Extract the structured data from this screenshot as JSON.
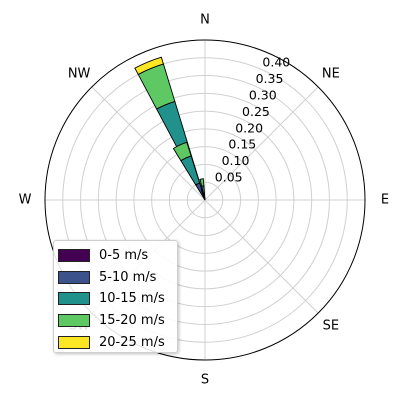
{
  "chart_data": {
    "type": "windrose",
    "directions": [
      "N",
      "NE",
      "E",
      "SE",
      "S",
      "SW",
      "W",
      "NW"
    ],
    "radial_ticks": [
      "0.05",
      "0.10",
      "0.15",
      "0.20",
      "0.25",
      "0.30",
      "0.35",
      "0.40"
    ],
    "rmax": 0.45,
    "grid": true,
    "legend_position": "lower-left",
    "bins": [
      {
        "name": "0-5 m/s",
        "color": "#440154"
      },
      {
        "name": "5-10 m/s",
        "color": "#3b528b"
      },
      {
        "name": "10-15 m/s",
        "color": "#21918c"
      },
      {
        "name": "15-20 m/s",
        "color": "#5ec962"
      },
      {
        "name": "20-25 m/s",
        "color": "#fde725"
      }
    ],
    "sectors": [
      {
        "direction_deg": 337.5,
        "width_deg": 11,
        "cumulative": [
          0.005,
          0.06,
          0.29,
          0.4,
          0.42
        ]
      },
      {
        "direction_deg": 335.5,
        "width_deg": 14,
        "cumulative": [
          0.005,
          0.05,
          0.13,
          0.17,
          0.17
        ]
      },
      {
        "direction_deg": 351.0,
        "width_deg": 9,
        "cumulative": [
          0.005,
          0.02,
          0.04,
          0.06,
          0.06
        ]
      },
      {
        "direction_deg": 342.0,
        "width_deg": 6,
        "cumulative": [
          0.005,
          0.02,
          0.03,
          0.03,
          0.03
        ]
      }
    ]
  }
}
